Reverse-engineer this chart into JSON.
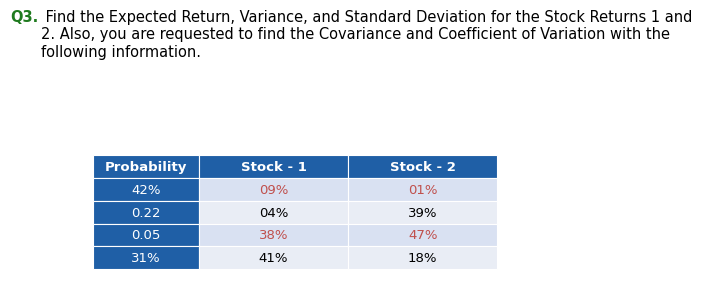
{
  "title_q": "Q3.",
  "title_text": " Find the Expected Return, Variance, and Standard Deviation for the Stock Returns 1 and\n2. Also, you are requested to find the Covariance and Coefficient of Variation with the\nfollowing information.",
  "title_q_color": "#1f7a1f",
  "title_text_color": "#000000",
  "title_fontsize": 10.5,
  "header": [
    "Probability",
    "Stock - 1",
    "Stock - 2"
  ],
  "rows": [
    [
      "42%",
      "09%",
      "01%"
    ],
    [
      "0.22",
      "04%",
      "39%"
    ],
    [
      "0.05",
      "38%",
      "47%"
    ],
    [
      "31%",
      "41%",
      "18%"
    ]
  ],
  "header_bg": "#1f5fa6",
  "header_text_color": "#ffffff",
  "prob_col_bg": "#1f5fa6",
  "prob_col_text_color": "#ffffff",
  "row_bg_colors": [
    "#d9e1f2",
    "#e9edf5",
    "#d9e1f2",
    "#e9edf5"
  ],
  "stock_text_colors": [
    "#c0504d",
    "#000000",
    "#c0504d",
    "#000000"
  ],
  "cell_fontsize": 9.5,
  "header_fontsize": 9.5,
  "prob_fontsize": 9.5
}
